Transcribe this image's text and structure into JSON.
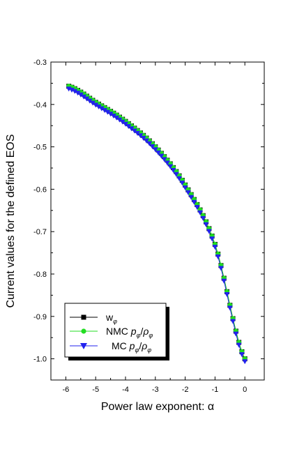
{
  "chart_data": {
    "type": "line",
    "xlabel": "Power law exponent: α",
    "ylabel": "Current values for the defined EOS",
    "xlim": [
      -6.5,
      0.65
    ],
    "ylim": [
      -1.05,
      -0.3
    ],
    "xticks": [
      -6,
      -5,
      -4,
      -3,
      -2,
      -1,
      0
    ],
    "xtick_labels": [
      "-6",
      "-5",
      "-4",
      "-3",
      "-2",
      "-1",
      "0"
    ],
    "yticks": [
      -1.0,
      -0.9,
      -0.8,
      -0.7,
      -0.6,
      -0.5,
      -0.4,
      -0.3
    ],
    "ytick_labels": [
      "-1.0",
      "-0.9",
      "-0.8",
      "-0.7",
      "-0.6",
      "-0.5",
      "-0.4",
      "-0.3"
    ],
    "grid": false,
    "legend_position": "bottom-left",
    "x": [
      -5.9,
      -5.8,
      -5.7,
      -5.6,
      -5.5,
      -5.4,
      -5.3,
      -5.2,
      -5.1,
      -5.0,
      -4.9,
      -4.8,
      -4.7,
      -4.6,
      -4.5,
      -4.4,
      -4.3,
      -4.2,
      -4.1,
      -4.0,
      -3.9,
      -3.8,
      -3.7,
      -3.6,
      -3.5,
      -3.4,
      -3.3,
      -3.2,
      -3.1,
      -3.0,
      -2.9,
      -2.8,
      -2.7,
      -2.6,
      -2.5,
      -2.4,
      -2.3,
      -2.2,
      -2.1,
      -2.0,
      -1.9,
      -1.8,
      -1.7,
      -1.6,
      -1.5,
      -1.4,
      -1.3,
      -1.2,
      -1.1,
      -1.0,
      -0.9,
      -0.8,
      -0.7,
      -0.6,
      -0.5,
      -0.4,
      -0.3,
      -0.2,
      -0.1,
      0.0
    ],
    "series": [
      {
        "name": "w",
        "subscript": "φ",
        "color": "#000000",
        "marker": "square",
        "y_offset": 0.0
      },
      {
        "name": "NMC p",
        "subscript": "φ",
        "ratio_den": "ρ",
        "color": "#22dd22",
        "marker": "circle",
        "y_offset": 0.0
      },
      {
        "name": "MC p",
        "subscript": "φ",
        "ratio_den": "ρ",
        "color": "#2222ee",
        "marker": "triangle-down",
        "y_offset": -0.006
      }
    ],
    "curve": {
      "a": 0.057,
      "b": -0.0027,
      "A": 0.425
    }
  }
}
